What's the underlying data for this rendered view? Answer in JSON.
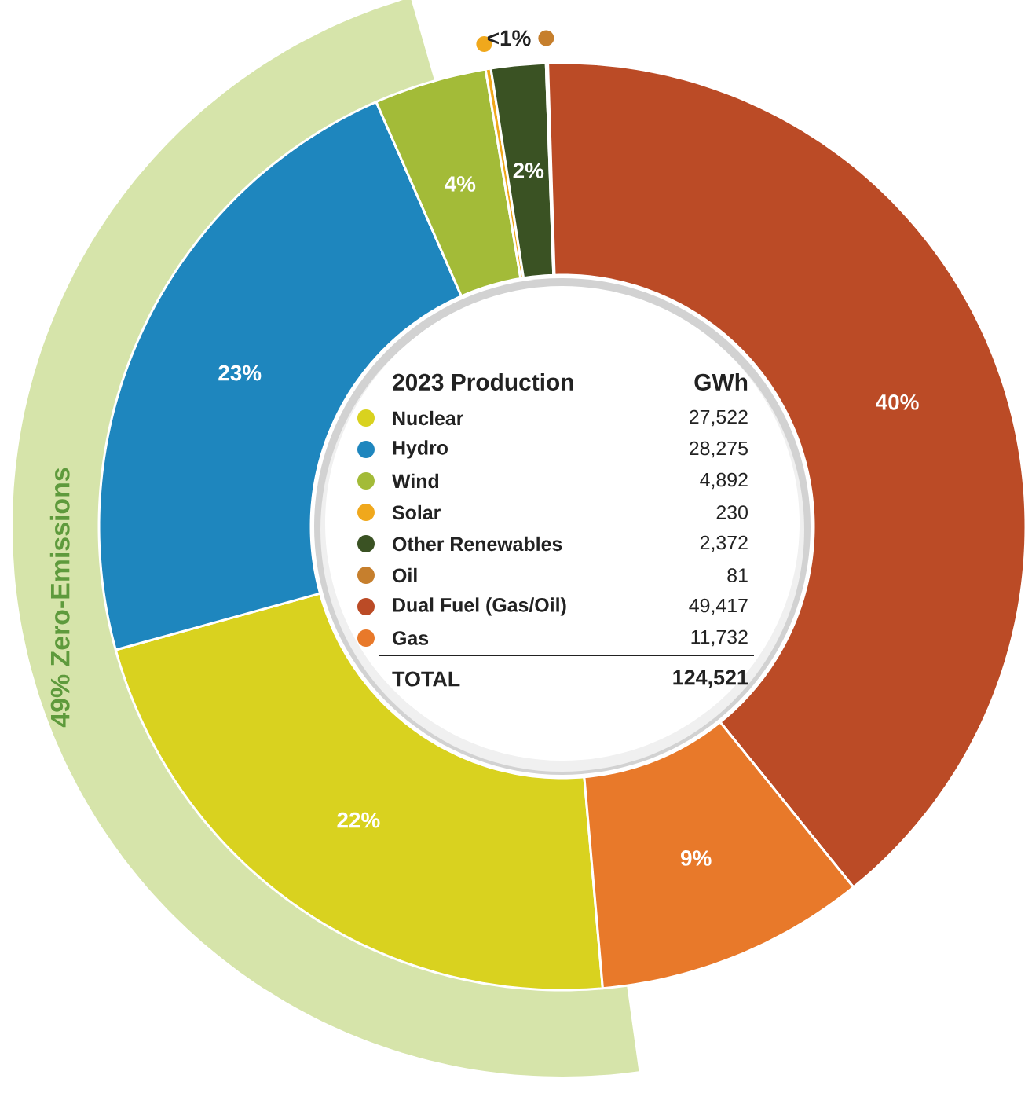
{
  "chart_data": {
    "type": "donut",
    "legend_title": "2023 Production",
    "categories": [
      "Nuclear",
      "Hydro",
      "Wind",
      "Solar",
      "Other Renewables",
      "Oil",
      "Dual Fuel (Gas/Oil)",
      "Gas"
    ],
    "values": [
      27522,
      28275,
      4892,
      230,
      2372,
      81,
      49417,
      11732
    ],
    "colors": [
      "#d9d21f",
      "#1e86be",
      "#a3bb38",
      "#f0a81c",
      "#3a5223",
      "#c67f2d",
      "#bb4b26",
      "#e8792a"
    ],
    "value_labels": [
      "27,522",
      "28,275",
      "4,892",
      "230",
      "2,372",
      "81",
      "49,417",
      "11,732"
    ],
    "totals": [
      "124,521"
    ],
    "legend": "center",
    "annotations": [
      "49% Zero-Emissions",
      "GWh",
      "TOTAL",
      {
        "text": "22%",
        "x": "Nuclear"
      },
      {
        "text": "23%",
        "x": "Hydro"
      },
      {
        "text": "4%",
        "x": "Wind"
      },
      {
        "text": "2%",
        "x": "Other Renewables"
      },
      {
        "text": "<1%",
        "x": "Oil"
      },
      {
        "text": "40%",
        "x": "Dual Fuel (Gas/Oil)"
      },
      {
        "text": "9%",
        "x": "Gas"
      }
    ]
  }
}
